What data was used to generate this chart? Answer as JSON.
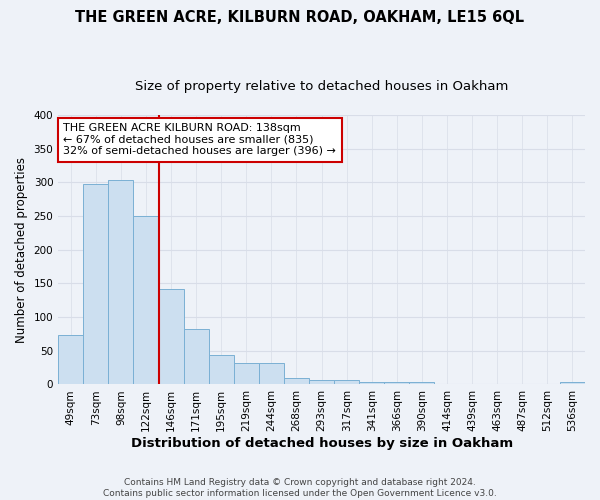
{
  "title": "THE GREEN ACRE, KILBURN ROAD, OAKHAM, LE15 6QL",
  "subtitle": "Size of property relative to detached houses in Oakham",
  "xlabel": "Distribution of detached houses by size in Oakham",
  "ylabel": "Number of detached properties",
  "categories": [
    "49sqm",
    "73sqm",
    "98sqm",
    "122sqm",
    "146sqm",
    "171sqm",
    "195sqm",
    "219sqm",
    "244sqm",
    "268sqm",
    "293sqm",
    "317sqm",
    "341sqm",
    "366sqm",
    "390sqm",
    "414sqm",
    "439sqm",
    "463sqm",
    "487sqm",
    "512sqm",
    "536sqm"
  ],
  "values": [
    73,
    298,
    303,
    250,
    142,
    83,
    44,
    32,
    32,
    9,
    7,
    6,
    4,
    4,
    4,
    1,
    1,
    1,
    1,
    1,
    3
  ],
  "bar_color": "#ccdff0",
  "bar_edge_color": "#7ab0d4",
  "vline_color": "#cc0000",
  "vline_x": 3.5,
  "annotation_text": "THE GREEN ACRE KILBURN ROAD: 138sqm\n← 67% of detached houses are smaller (835)\n32% of semi-detached houses are larger (396) →",
  "annotation_box_facecolor": "white",
  "annotation_box_edgecolor": "#cc0000",
  "footnote": "Contains HM Land Registry data © Crown copyright and database right 2024.\nContains public sector information licensed under the Open Government Licence v3.0.",
  "ylim": [
    0,
    400
  ],
  "yticks": [
    0,
    50,
    100,
    150,
    200,
    250,
    300,
    350,
    400
  ],
  "title_fontsize": 10.5,
  "subtitle_fontsize": 9.5,
  "xlabel_fontsize": 9.5,
  "ylabel_fontsize": 8.5,
  "tick_fontsize": 7.5,
  "annot_fontsize": 8,
  "footnote_fontsize": 6.5,
  "bg_color": "#eef2f8",
  "grid_color": "#d8dde8"
}
